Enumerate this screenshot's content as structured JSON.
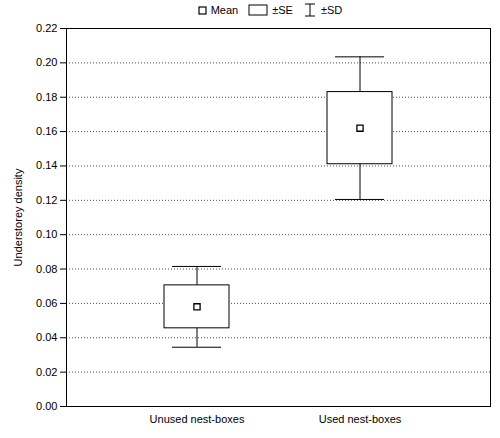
{
  "chart_data": {
    "type": "box",
    "y_label": "Understorey density",
    "categories": [
      "Unused nest-boxes",
      "Used nest-boxes"
    ],
    "values": [
      0.058,
      0.162
    ],
    "se": [
      0.0125,
      0.021
    ],
    "sd": [
      0.0235,
      0.0415
    ],
    "legend": "top",
    "legend_labels": [
      "Mean",
      "±SE",
      "±SD"
    ],
    "color": "#000000",
    "grid": true,
    "ylim": [
      0,
      0.22
    ],
    "yticks": [
      {
        "value": 0,
        "label": "0.00"
      },
      {
        "value": 0.02,
        "label": "0.02"
      },
      {
        "value": 0.04,
        "label": "0.04"
      },
      {
        "value": 0.06,
        "label": "0.06"
      },
      {
        "value": 0.08,
        "label": "0.08"
      },
      {
        "value": 0.1,
        "label": "0.10"
      },
      {
        "value": 0.12,
        "label": "0.12"
      },
      {
        "value": 0.14,
        "label": "0.14"
      },
      {
        "value": 0.16,
        "label": "0.16"
      },
      {
        "value": 0.18,
        "label": "0.18"
      },
      {
        "value": 0.2,
        "label": "0.20"
      },
      {
        "value": 0.22,
        "label": "0.22"
      }
    ]
  }
}
